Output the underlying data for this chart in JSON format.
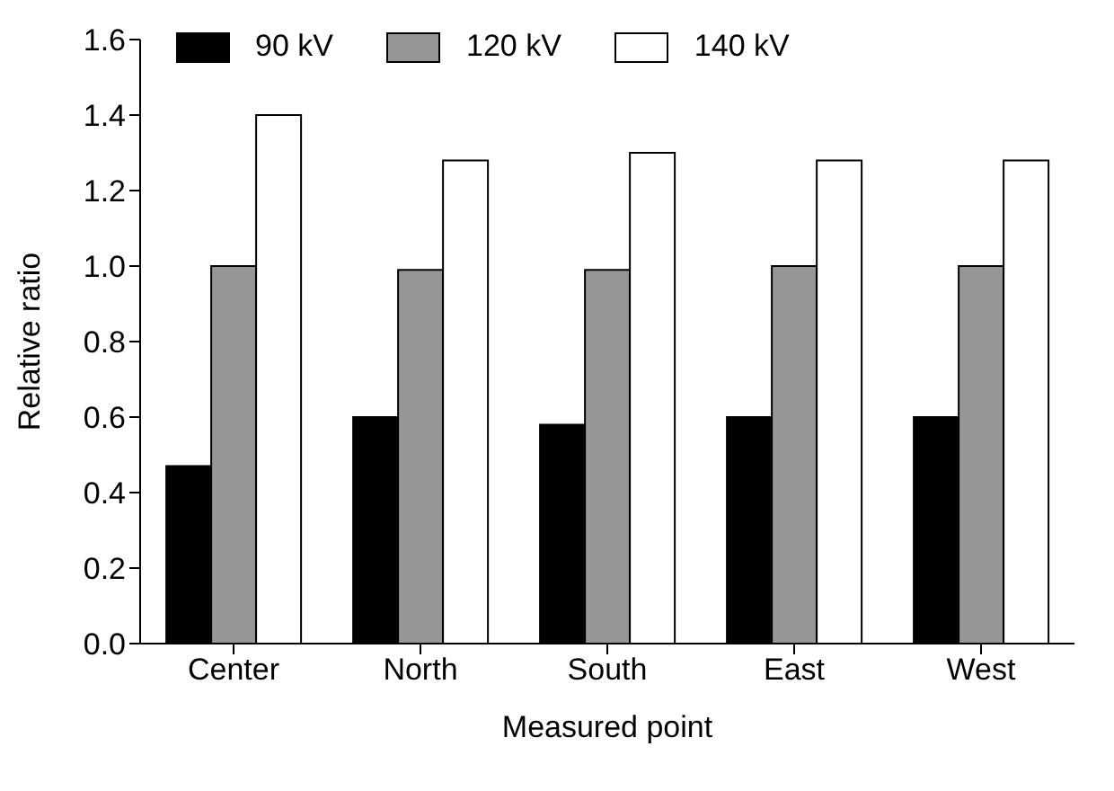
{
  "chart_data": {
    "type": "bar",
    "xlabel": "Measured point",
    "ylabel": "Relative ratio",
    "categories": [
      "Center",
      "North",
      "South",
      "East",
      "West"
    ],
    "series": [
      {
        "name": "90 kV",
        "color": "#000000",
        "values": [
          0.47,
          0.6,
          0.58,
          0.6,
          0.6
        ]
      },
      {
        "name": "120 kV",
        "color": "#969696",
        "values": [
          1.0,
          0.99,
          0.99,
          1.0,
          1.0
        ]
      },
      {
        "name": "140 kV",
        "color": "#ffffff",
        "values": [
          1.4,
          1.28,
          1.3,
          1.28,
          1.28
        ]
      }
    ],
    "ylim": [
      0,
      1.6
    ],
    "yticks": [
      {
        "value": 0,
        "label": "0.0"
      },
      {
        "value": 0.2,
        "label": "0.2"
      },
      {
        "value": 0.4,
        "label": "0.4"
      },
      {
        "value": 0.6,
        "label": "0.6"
      },
      {
        "value": 0.8,
        "label": "0.8"
      },
      {
        "value": 1,
        "label": "1.0"
      },
      {
        "value": 1.2,
        "label": "1.2"
      },
      {
        "value": 1.4,
        "label": "1.4"
      },
      {
        "value": 1.6,
        "label": "1.6"
      }
    ],
    "grid": false,
    "legend": "top left"
  }
}
